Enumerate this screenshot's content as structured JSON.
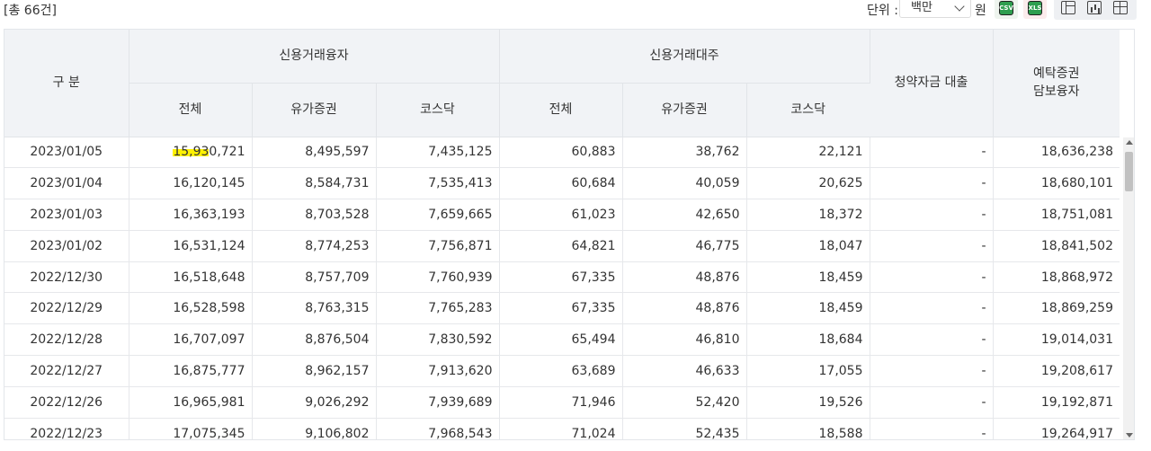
{
  "toolbar": {
    "total_count": "[총 66건]",
    "unit_label": "단위 :",
    "unit_selected": "백만",
    "unit_suffix": "원",
    "download_csv_icon": "csv-download-icon",
    "download_xls_icon": "xls-download-icon",
    "csv_text": "CSV",
    "xls_text": "XLS"
  },
  "table": {
    "header": {
      "category": "구 분",
      "credit_loan_group": "신용거래융자",
      "credit_short_group": "신용거래대주",
      "subscription_loan": "청약자금 대출",
      "deposit_secured_line1": "예탁증권",
      "deposit_secured_line2": "담보융자",
      "total": "전체",
      "securities": "유가증권",
      "kosdaq": "코스닥"
    },
    "rows": [
      {
        "date": "2023/01/05",
        "loan_total": "15,930,721",
        "loan_sec": "8,495,597",
        "loan_kosdaq": "7,435,125",
        "short_total": "60,883",
        "short_sec": "38,762",
        "short_kosdaq": "22,121",
        "subscription": "-",
        "deposit": "18,636,238"
      },
      {
        "date": "2023/01/04",
        "loan_total": "16,120,145",
        "loan_sec": "8,584,731",
        "loan_kosdaq": "7,535,413",
        "short_total": "60,684",
        "short_sec": "40,059",
        "short_kosdaq": "20,625",
        "subscription": "-",
        "deposit": "18,680,101"
      },
      {
        "date": "2023/01/03",
        "loan_total": "16,363,193",
        "loan_sec": "8,703,528",
        "loan_kosdaq": "7,659,665",
        "short_total": "61,023",
        "short_sec": "42,650",
        "short_kosdaq": "18,372",
        "subscription": "-",
        "deposit": "18,751,081"
      },
      {
        "date": "2023/01/02",
        "loan_total": "16,531,124",
        "loan_sec": "8,774,253",
        "loan_kosdaq": "7,756,871",
        "short_total": "64,821",
        "short_sec": "46,775",
        "short_kosdaq": "18,047",
        "subscription": "-",
        "deposit": "18,841,502"
      },
      {
        "date": "2022/12/30",
        "loan_total": "16,518,648",
        "loan_sec": "8,757,709",
        "loan_kosdaq": "7,760,939",
        "short_total": "67,335",
        "short_sec": "48,876",
        "short_kosdaq": "18,459",
        "subscription": "-",
        "deposit": "18,868,972"
      },
      {
        "date": "2022/12/29",
        "loan_total": "16,528,598",
        "loan_sec": "8,763,315",
        "loan_kosdaq": "7,765,283",
        "short_total": "67,335",
        "short_sec": "48,876",
        "short_kosdaq": "18,459",
        "subscription": "-",
        "deposit": "18,869,259"
      },
      {
        "date": "2022/12/28",
        "loan_total": "16,707,097",
        "loan_sec": "8,876,504",
        "loan_kosdaq": "7,830,592",
        "short_total": "65,494",
        "short_sec": "46,810",
        "short_kosdaq": "18,684",
        "subscription": "-",
        "deposit": "19,014,031"
      },
      {
        "date": "2022/12/27",
        "loan_total": "16,875,777",
        "loan_sec": "8,962,157",
        "loan_kosdaq": "7,913,620",
        "short_total": "63,689",
        "short_sec": "46,633",
        "short_kosdaq": "17,055",
        "subscription": "-",
        "deposit": "19,208,617"
      },
      {
        "date": "2022/12/26",
        "loan_total": "16,965,981",
        "loan_sec": "9,026,292",
        "loan_kosdaq": "7,939,689",
        "short_total": "71,946",
        "short_sec": "52,420",
        "short_kosdaq": "19,526",
        "subscription": "-",
        "deposit": "19,192,871"
      },
      {
        "date": "2022/12/23",
        "loan_total": "17,075,345",
        "loan_sec": "9,106,802",
        "loan_kosdaq": "7,968,543",
        "short_total": "71,024",
        "short_sec": "52,435",
        "short_kosdaq": "18,588",
        "subscription": "-",
        "deposit": "19,264,917"
      }
    ],
    "highlight": {
      "row": 0,
      "col": "loan_total",
      "prefix": "15,93",
      "rest": "0,721",
      "color": "#fff200"
    }
  }
}
